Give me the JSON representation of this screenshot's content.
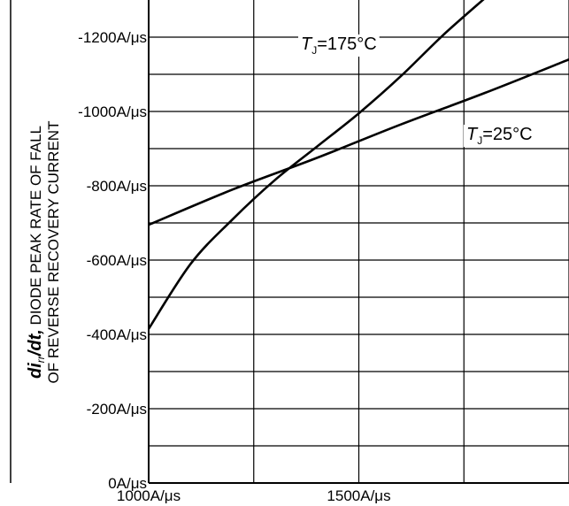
{
  "chart_data": {
    "type": "line",
    "xlabel": "",
    "ylabel": {
      "symbol": "di",
      "subscript": "rr",
      "suffix": "/dt,",
      "line1_rest": " DIODE PEAK RATE OF FALL",
      "line2": "OF REVERSE RECOVERY CURRENT"
    },
    "x_ticks": [
      {
        "value": 1000,
        "label": "1000A/μs"
      },
      {
        "value": 1500,
        "label": "1500A/μs"
      }
    ],
    "y_ticks": [
      {
        "value": 0,
        "label": "0A/μs"
      },
      {
        "value": -200,
        "label": "-200A/μs"
      },
      {
        "value": -400,
        "label": "-400A/μs"
      },
      {
        "value": -600,
        "label": "-600A/μs"
      },
      {
        "value": -800,
        "label": "-800A/μs"
      },
      {
        "value": -1000,
        "label": "-1000A/μs"
      },
      {
        "value": -1200,
        "label": "-1200A/μs"
      }
    ],
    "xlim": [
      1000,
      2000
    ],
    "ylim": [
      0,
      -1300
    ],
    "x_gridlines": [
      1000,
      1250,
      1500,
      1750,
      2000
    ],
    "y_gridlines": [
      -100,
      -200,
      -300,
      -400,
      -500,
      -600,
      -700,
      -800,
      -900,
      -1000,
      -1100,
      -1200
    ],
    "grid": true,
    "series": [
      {
        "name": "T_J=175°C",
        "label_main": "T",
        "label_sub": "J",
        "label_rest": "=175°C",
        "x": [
          1000,
          1100,
          1200,
          1300,
          1400,
          1500,
          1600,
          1700,
          1800
        ],
        "y": [
          -415,
          -590,
          -710,
          -815,
          -905,
          -995,
          -1095,
          -1205,
          -1305
        ]
      },
      {
        "name": "T_J=25°C",
        "label_main": "T",
        "label_sub": "J",
        "label_rest": "=25°C",
        "x": [
          1000,
          1200,
          1400,
          1600,
          1800,
          2000
        ],
        "y": [
          -695,
          -790,
          -875,
          -965,
          -1050,
          -1140
        ]
      }
    ]
  }
}
